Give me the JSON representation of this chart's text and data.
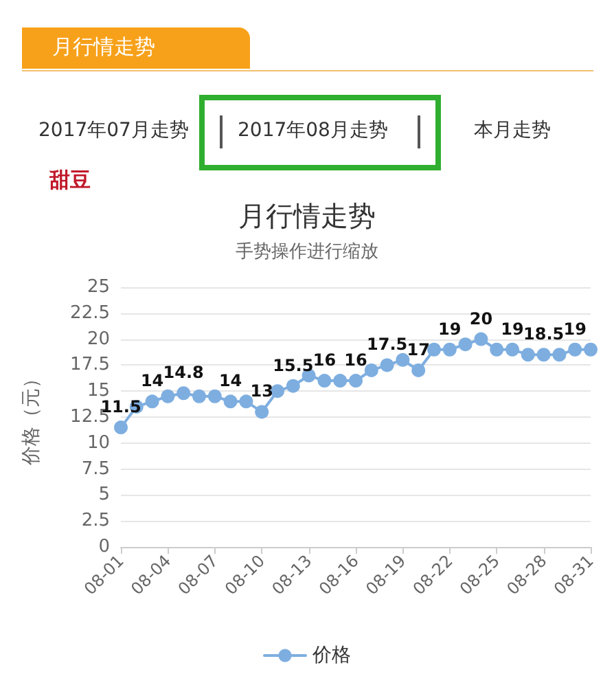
{
  "chart_data": {
    "type": "line",
    "title": "月行情走势",
    "subtitle": "手势操作进行缩放",
    "ylabel": "价格（元）",
    "annotations": [
      "月行情走势",
      "2017年07月走势",
      "2017年08月走势",
      "本月走势",
      "甜豆"
    ],
    "categories": [
      "08-01",
      null,
      null,
      "08-04",
      null,
      null,
      "08-07",
      null,
      null,
      "08-10",
      null,
      null,
      "08-13",
      null,
      null,
      "08-16",
      null,
      null,
      "08-19",
      null,
      null,
      "08-22",
      null,
      null,
      "08-25",
      null,
      null,
      "08-28",
      null,
      null,
      "08-31"
    ],
    "series": [
      {
        "name": "价格",
        "color": "#7eaee0",
        "values": [
          11.5,
          13.5,
          14,
          14.5,
          14.8,
          14.5,
          14.5,
          14,
          14,
          13,
          15,
          15.5,
          16.5,
          16,
          16,
          16,
          17,
          17.5,
          18,
          17,
          19,
          19,
          19.5,
          20,
          19,
          19,
          18.5,
          18.5,
          18.5,
          19,
          19
        ],
        "value_labels": [
          "11.5",
          null,
          "14",
          null,
          "14.8",
          null,
          null,
          "14",
          null,
          "13",
          null,
          "15.5",
          null,
          "16",
          null,
          "16",
          null,
          "17.5",
          null,
          "17",
          null,
          "19",
          null,
          "20",
          null,
          "19",
          null,
          "18.5",
          null,
          "19",
          null
        ]
      }
    ],
    "ylim": [
      0,
      25
    ],
    "yticks": [
      0,
      2.5,
      5,
      7.5,
      10,
      12.5,
      15,
      17.5,
      20,
      22.5,
      25
    ],
    "grid": "y",
    "legend": "bottom",
    "marker": "circle",
    "line_style": "solid"
  }
}
